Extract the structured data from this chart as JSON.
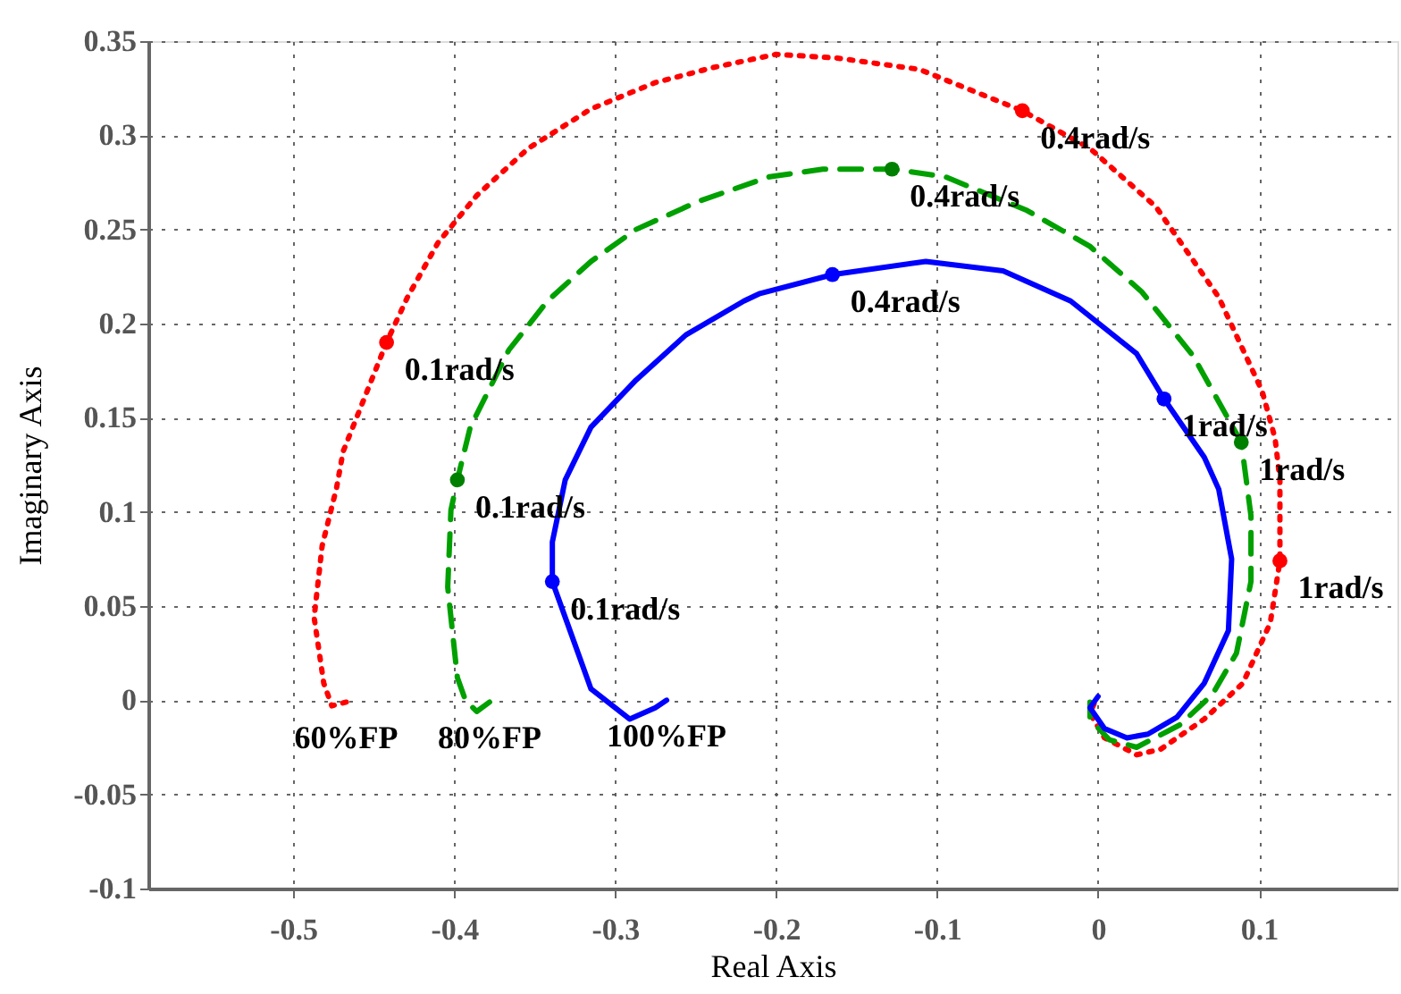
{
  "chart_data": {
    "type": "line",
    "xlabel": "Real Axis",
    "ylabel": "Imaginary Axis",
    "xlim": [
      -0.59,
      0.186
    ],
    "ylim": [
      -0.1,
      0.35
    ],
    "xticks": [
      -0.5,
      -0.4,
      -0.3,
      -0.2,
      -0.1,
      0,
      0.1
    ],
    "yticks": [
      -0.1,
      -0.05,
      0,
      0.05,
      0.1,
      0.15,
      0.2,
      0.25,
      0.3,
      0.35
    ],
    "grid": true,
    "series": [
      {
        "line_style": "dotted",
        "color": "#ff0000",
        "x": [
          -0.467,
          -0.476,
          -0.481,
          -0.487,
          -0.482,
          -0.473,
          -0.469,
          -0.442,
          -0.429,
          -0.41,
          -0.386,
          -0.354,
          -0.315,
          -0.275,
          -0.239,
          -0.2,
          -0.162,
          -0.111,
          -0.047,
          -0.005,
          0.036,
          0.075,
          0.102,
          0.11,
          0.113,
          0.113,
          0.107,
          0.09,
          0.066,
          0.039,
          0.024,
          0.004,
          -0.005,
          -0.002
        ],
        "values": [
          -0.001,
          -0.003,
          0.009,
          0.044,
          0.082,
          0.113,
          0.132,
          0.19,
          0.214,
          0.243,
          0.268,
          0.293,
          0.314,
          0.328,
          0.336,
          0.343,
          0.341,
          0.335,
          0.313,
          0.293,
          0.262,
          0.214,
          0.164,
          0.139,
          0.117,
          0.074,
          0.041,
          0.009,
          -0.01,
          -0.026,
          -0.029,
          -0.02,
          -0.007,
          -0.001
        ]
      },
      {
        "line_style": "dashed",
        "color": "#00a000",
        "x": [
          -0.378,
          -0.386,
          -0.393,
          -0.398,
          -0.404,
          -0.402,
          -0.398,
          -0.39,
          -0.366,
          -0.342,
          -0.315,
          -0.287,
          -0.248,
          -0.204,
          -0.171,
          -0.128,
          -0.095,
          -0.044,
          -0.005,
          0.027,
          0.059,
          0.089,
          0.095,
          0.095,
          0.086,
          0.071,
          0.051,
          0.024,
          0.007,
          -0.005,
          -0.005
        ],
        "values": [
          -0.001,
          -0.006,
          0.0,
          0.012,
          0.06,
          0.101,
          0.117,
          0.145,
          0.186,
          0.212,
          0.233,
          0.25,
          0.265,
          0.278,
          0.282,
          0.282,
          0.278,
          0.26,
          0.241,
          0.217,
          0.183,
          0.137,
          0.098,
          0.063,
          0.025,
          0.003,
          -0.013,
          -0.025,
          -0.021,
          -0.01,
          -0.001
        ]
      },
      {
        "line_style": "solid",
        "color": "#0000ff",
        "x": [
          -0.268,
          -0.275,
          -0.291,
          -0.315,
          -0.339,
          -0.339,
          -0.331,
          -0.315,
          -0.287,
          -0.256,
          -0.22,
          -0.21,
          -0.165,
          -0.107,
          -0.059,
          -0.017,
          0.024,
          0.041,
          0.066,
          0.075,
          0.083,
          0.081,
          0.066,
          0.049,
          0.031,
          0.018,
          0.004,
          -0.005,
          0.0
        ],
        "values": [
          0.0,
          -0.004,
          -0.01,
          0.006,
          0.063,
          0.084,
          0.117,
          0.145,
          0.17,
          0.194,
          0.212,
          0.216,
          0.226,
          0.233,
          0.228,
          0.212,
          0.184,
          0.16,
          0.129,
          0.112,
          0.075,
          0.037,
          0.009,
          -0.009,
          -0.018,
          -0.02,
          -0.015,
          -0.004,
          0.002
        ]
      },
      {
        "type": "scatter",
        "marker": "circle",
        "color": "#ff0000",
        "x": [
          -0.442,
          -0.047,
          0.113
        ],
        "values": [
          0.19,
          0.313,
          0.074
        ]
      },
      {
        "type": "scatter",
        "marker": "circle",
        "color": "#008000",
        "x": [
          -0.398,
          -0.128,
          0.089
        ],
        "values": [
          0.117,
          0.282,
          0.137
        ]
      },
      {
        "type": "scatter",
        "marker": "circle",
        "color": "#0000ff",
        "x": [
          -0.339,
          -0.165,
          0.041
        ],
        "values": [
          0.063,
          0.226,
          0.16
        ]
      }
    ],
    "annotations": [
      {
        "text": "0.1rad/s",
        "x": -0.442,
        "y": 0.19
      },
      {
        "text": "0.1rad/s",
        "x": -0.398,
        "y": 0.117
      },
      {
        "text": "0.1rad/s",
        "x": -0.339,
        "y": 0.063
      },
      {
        "text": "0.4rad/s",
        "x": -0.047,
        "y": 0.313
      },
      {
        "text": "0.4rad/s",
        "x": -0.128,
        "y": 0.282
      },
      {
        "text": "0.4rad/s",
        "x": -0.165,
        "y": 0.226
      },
      {
        "text": "1rad/s",
        "x": 0.041,
        "y": 0.16
      },
      {
        "text": "1rad/s",
        "x": 0.089,
        "y": 0.137
      },
      {
        "text": "1rad/s",
        "x": 0.113,
        "y": 0.074
      },
      {
        "text": "60%FP",
        "x": -0.467,
        "y": -0.001
      },
      {
        "text": "80%FP",
        "x": -0.378,
        "y": -0.001
      },
      {
        "text": "100%FP",
        "x": -0.268,
        "y": 0.0
      }
    ]
  }
}
